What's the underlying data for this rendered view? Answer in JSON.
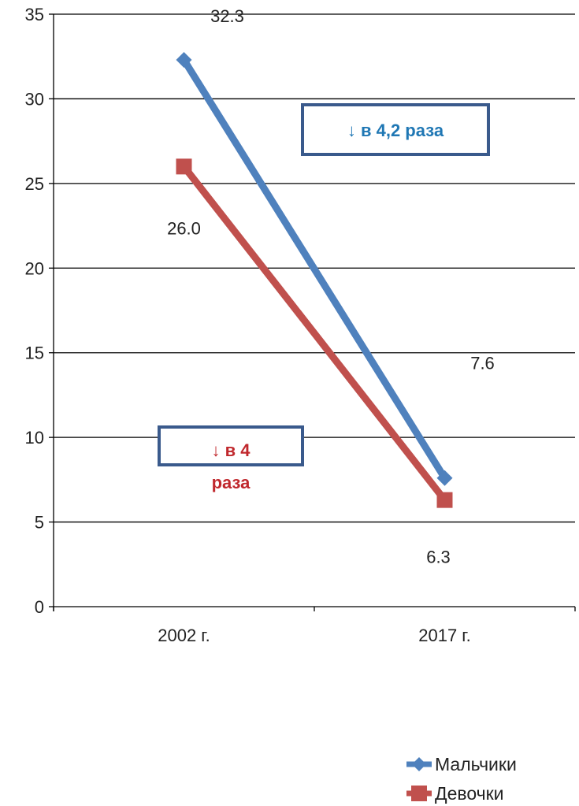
{
  "chart_data": {
    "type": "line",
    "categories": [
      "2002 г.",
      "2017 г."
    ],
    "ylim": [
      0,
      35
    ],
    "yticks": [
      0,
      5,
      10,
      15,
      20,
      25,
      30,
      35
    ],
    "grid": true,
    "legend_position": "bottom-right",
    "series": [
      {
        "name": "Мальчики",
        "values": [
          32.3,
          7.6
        ],
        "labels": [
          "32.3",
          "7.6"
        ],
        "color": "#4F81BD",
        "marker": "diamond"
      },
      {
        "name": "Девочки",
        "values": [
          26.0,
          6.3
        ],
        "labels": [
          "26.0",
          "6.3"
        ],
        "color": "#C0504D",
        "marker": "square"
      }
    ],
    "annotations": [
      {
        "lines": [
          "↓ в 4,2 раза"
        ],
        "color": "#1F77B4",
        "border": "#3A5A8C"
      },
      {
        "lines": [
          "↓ в 4",
          "раза"
        ],
        "color": "#C0282D",
        "border": "#3A5A8C"
      }
    ]
  }
}
